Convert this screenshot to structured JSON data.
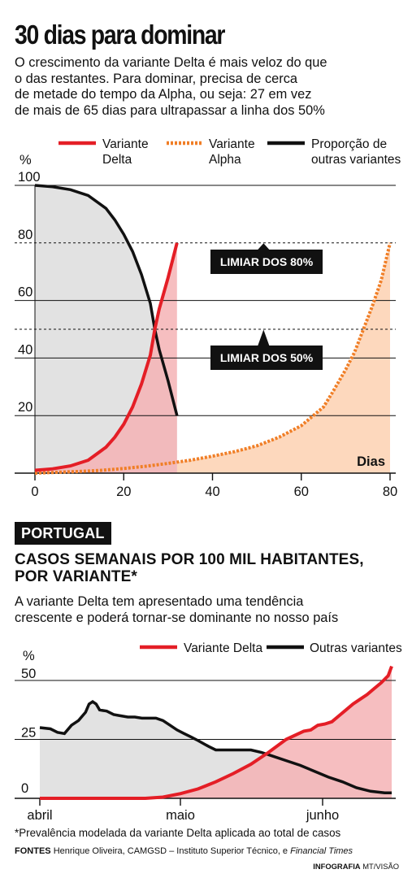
{
  "header": {
    "title": "30 dias para dominar",
    "intro": [
      "O crescimento da variante Delta é mais veloz do que",
      "o das restantes. Para dominar, precisa de cerca",
      "de metade do tempo da Alpha, ou seja: 27 em vez",
      "de mais de 65 dias para ultrapassar a linha dos 50%"
    ]
  },
  "section2": {
    "badge": "PORTUGAL",
    "heading": [
      "CASOS SEMANAIS POR 100 MIL HABITANTES,",
      "POR VARIANTE*"
    ],
    "intro": [
      "A variante Delta tem apresentado uma tendência",
      "crescente e poderá  tornar-se dominante no nosso país"
    ]
  },
  "footer": {
    "footnote": "*Prevalência modelada da variante Delta aplicada ao total de casos",
    "sources_label": "FONTES",
    "sources_text": "Henrique Oliveira, CAMGSD – Instituto Superior Técnico, e",
    "sources_italic": "Financial Times",
    "credit_label": "INFOGRAFIA",
    "credit_text": "MT/VISÃO"
  },
  "colors": {
    "delta": "#e41e26",
    "alpha": "#f07e26",
    "others": "#111111",
    "grey_fill": "#e2e2e2",
    "red_fill": "#f4b3b5",
    "orange_fill": "#fdd8bd"
  },
  "chart_data": [
    {
      "type": "line",
      "ylabel": "%",
      "xlabel": "Dias",
      "xlim": [
        0,
        80
      ],
      "ylim": [
        0,
        100
      ],
      "xticks": [
        0,
        20,
        40,
        60,
        80
      ],
      "yticks": [
        20,
        40,
        60,
        80,
        100
      ],
      "ytick_labels": [
        "20",
        "40",
        "60",
        "80",
        "100"
      ],
      "legend": [
        {
          "line1": "Variante",
          "line2": "Delta"
        },
        {
          "line1": "Variante",
          "line2": "Alpha"
        },
        {
          "line1": "Proporção de",
          "line2": "outras variantes"
        }
      ],
      "annotations": [
        {
          "text": "LIMIAR DOS 80%",
          "y": 80
        },
        {
          "text": "LIMIAR DOS 50%",
          "y": 50
        }
      ],
      "series": [
        {
          "name": "Variante Delta",
          "style": "solid",
          "x": [
            0,
            4,
            8,
            12,
            16,
            18,
            20,
            22,
            24,
            26,
            27,
            28,
            30,
            32
          ],
          "y": [
            1,
            1.5,
            2.5,
            4.5,
            9,
            12.5,
            17,
            23,
            31,
            41,
            50,
            57,
            68,
            80
          ]
        },
        {
          "name": "Variante Alpha",
          "style": "dotted",
          "x": [
            0,
            5,
            10,
            15,
            20,
            25,
            30,
            35,
            40,
            45,
            50,
            55,
            60,
            65,
            67,
            70,
            72,
            74,
            76,
            78,
            80
          ],
          "y": [
            0,
            0.3,
            0.6,
            1,
            1.6,
            2.4,
            3.4,
            4.5,
            5.9,
            7.5,
            9.5,
            12.5,
            16.5,
            23,
            28,
            36,
            42,
            50,
            58,
            67,
            80
          ]
        },
        {
          "name": "Proporção de outras variantes",
          "style": "solid",
          "x": [
            0,
            4,
            8,
            12,
            16,
            18,
            20,
            22,
            24,
            26,
            27,
            28,
            30,
            32
          ],
          "y": [
            100,
            99.5,
            98.5,
            96.5,
            92,
            88,
            83,
            77,
            69,
            59,
            50,
            43,
            32,
            20
          ]
        }
      ]
    },
    {
      "type": "area",
      "ylabel": "%",
      "yticks": [
        0,
        25,
        50
      ],
      "ylim": [
        0,
        50
      ],
      "categories": [
        "abril",
        "maio",
        "junho"
      ],
      "x_ticks_week": [
        0,
        4,
        8
      ],
      "legend": [
        "Variante Delta",
        "Outras variantes"
      ],
      "series": [
        {
          "name": "Variante Delta",
          "x": [
            0,
            1,
            2,
            3,
            3.5,
            4,
            4.5,
            5,
            5.5,
            6,
            6.5,
            7,
            7.5,
            7.7,
            7.9,
            8.1,
            8.3,
            8.5,
            8.7,
            8.9,
            9.1,
            9.3,
            9.5,
            9.7,
            9.9,
            10
          ],
          "y": [
            0,
            0,
            0,
            0,
            0.5,
            2,
            4,
            7,
            10.5,
            14.5,
            19.5,
            25,
            28.5,
            29,
            31,
            31.5,
            32.5,
            35,
            37.5,
            40,
            42,
            44,
            46.5,
            49,
            52,
            56
          ]
        },
        {
          "name": "Outras variantes",
          "x": [
            0,
            0.3,
            0.5,
            0.7,
            0.9,
            1.1,
            1.3,
            1.4,
            1.5,
            1.6,
            1.7,
            1.9,
            2.1,
            2.3,
            2.5,
            2.7,
            2.9,
            3.1,
            3.3,
            3.5,
            3.7,
            3.9,
            4.1,
            4.3,
            4.5,
            4.8,
            5,
            5.3,
            5.6,
            6,
            6.3,
            6.6,
            7,
            7.4,
            7.8,
            8.2,
            8.6,
            9,
            9.4,
            9.8,
            10
          ],
          "y": [
            30,
            29.5,
            28,
            27.5,
            31,
            33,
            36.5,
            40,
            41,
            40,
            37.5,
            37,
            35.5,
            35,
            34.5,
            34.5,
            34,
            34,
            34,
            33,
            31,
            29,
            27.5,
            26,
            24.5,
            22,
            20.5,
            20.5,
            20.5,
            20.5,
            19.5,
            18,
            16,
            14,
            11.5,
            9,
            7,
            4.5,
            3,
            2.3,
            2.3
          ]
        }
      ]
    }
  ]
}
